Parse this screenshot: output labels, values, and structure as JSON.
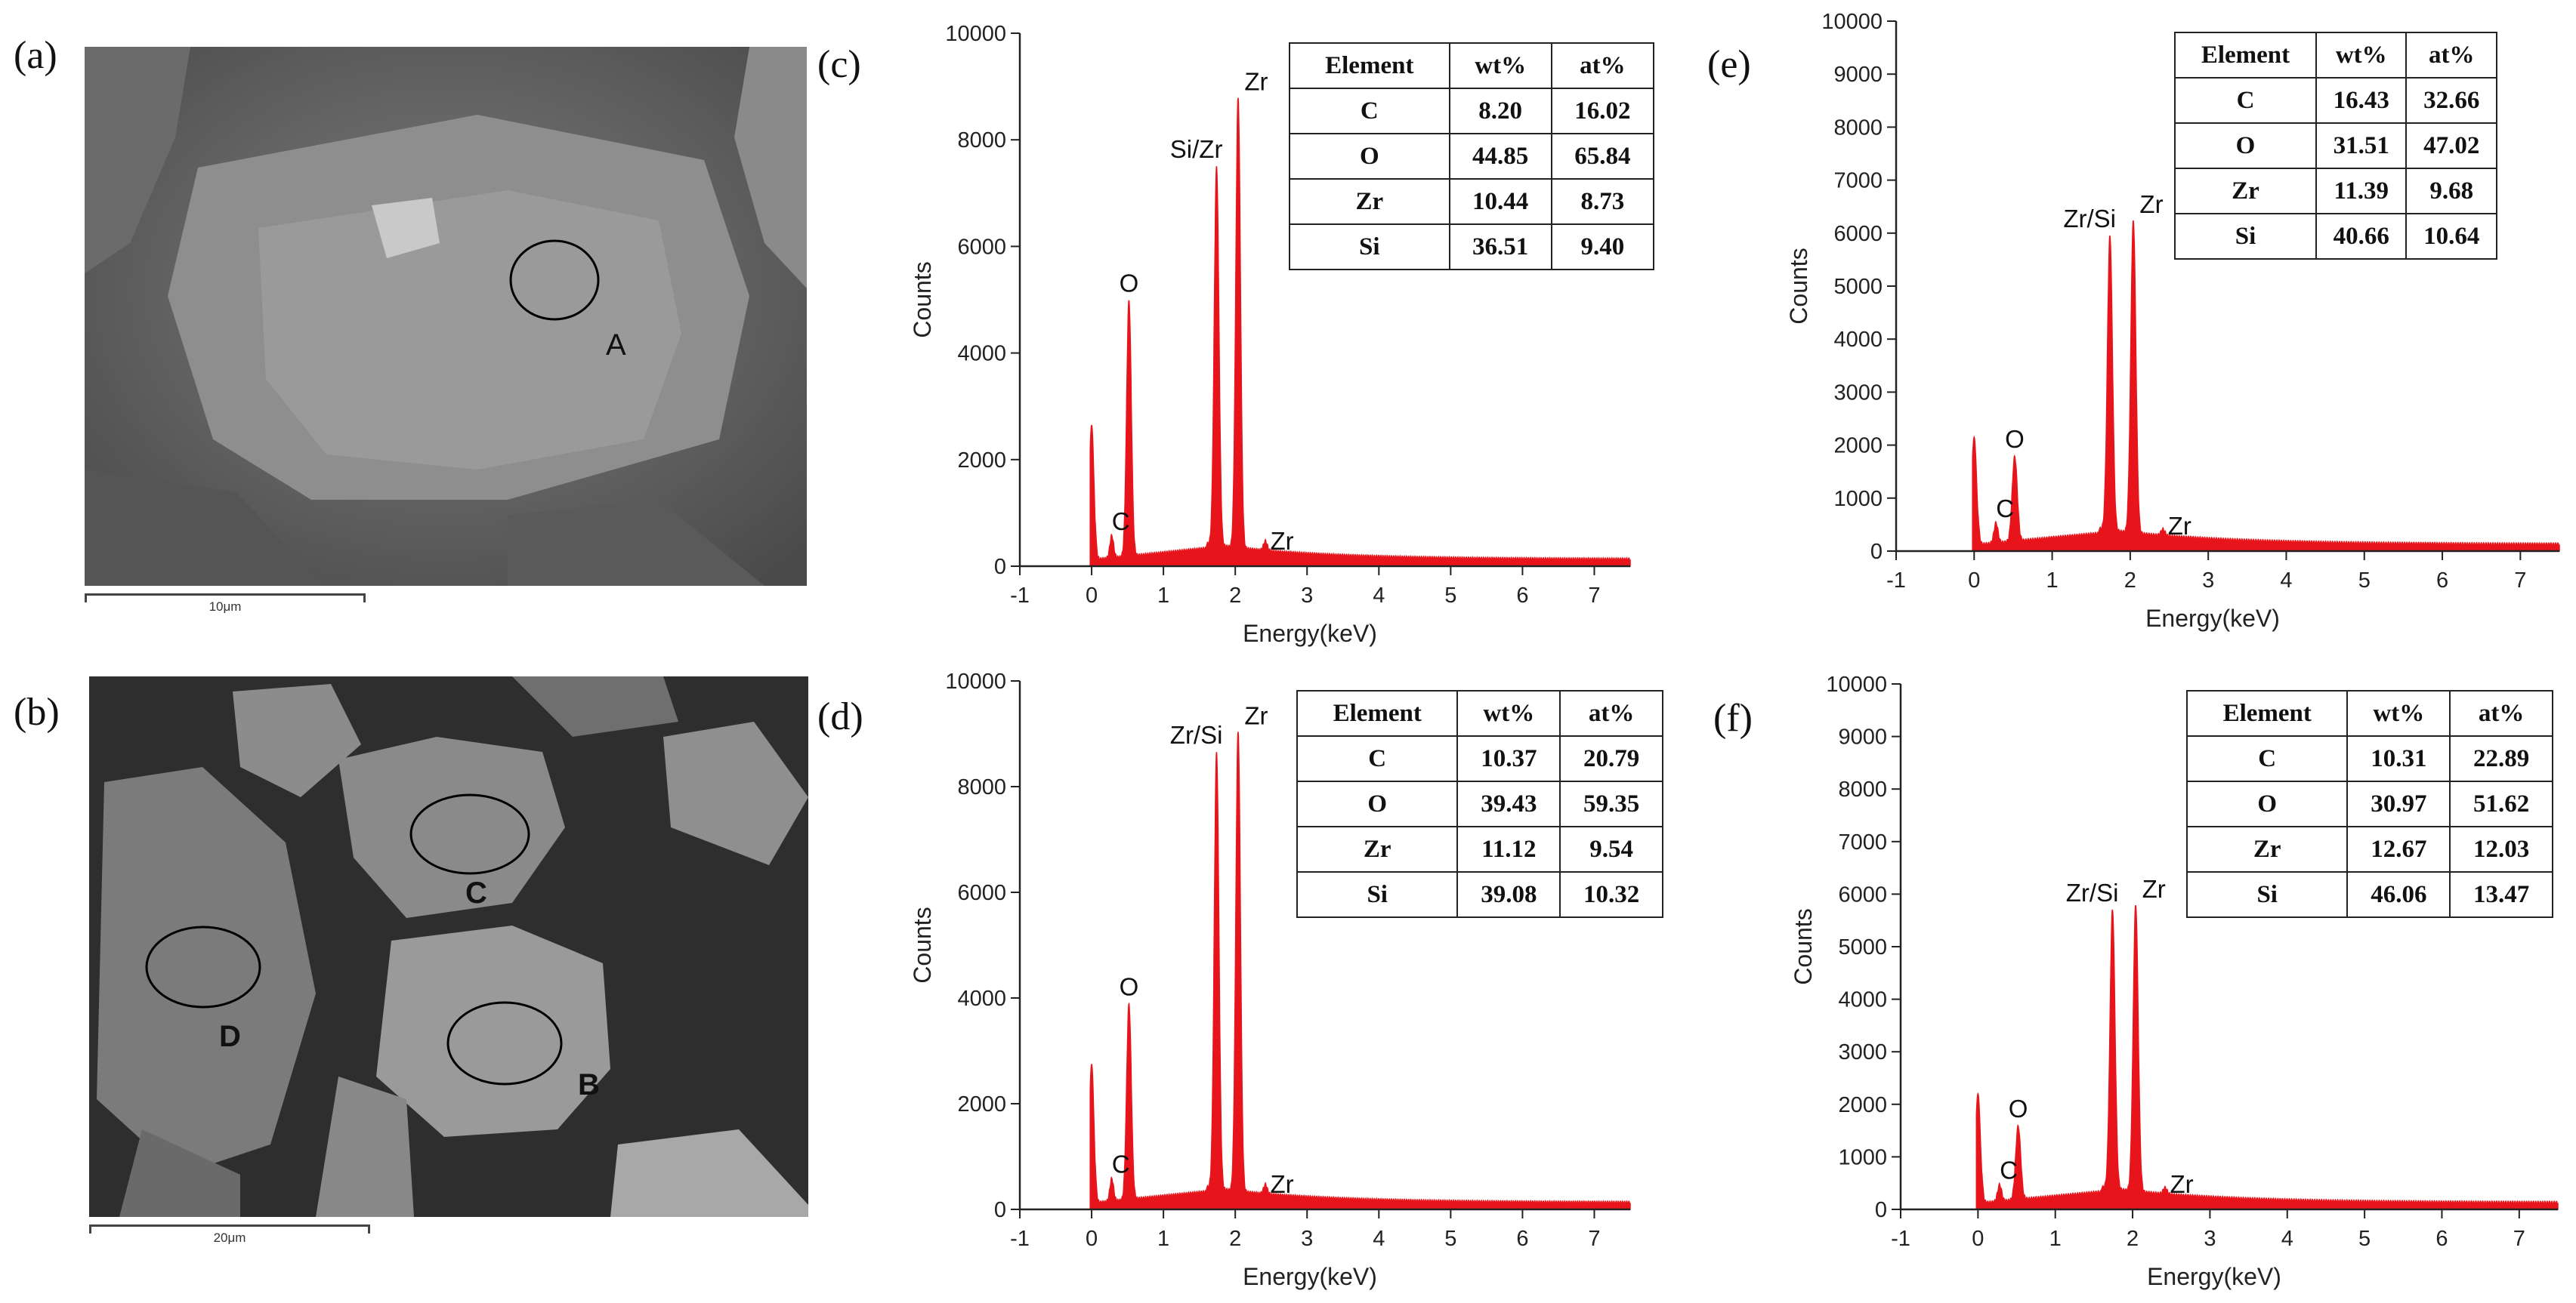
{
  "panels": {
    "a": {
      "letter": "(a)",
      "scalebar": "10μm",
      "regions": [
        "A"
      ]
    },
    "b": {
      "letter": "(b)",
      "scalebar": "20μm",
      "regions": [
        "C",
        "D",
        "B"
      ]
    },
    "c": {
      "letter": "(c)"
    },
    "d": {
      "letter": "(d)"
    },
    "e": {
      "letter": "(e)"
    },
    "f": {
      "letter": "(f)"
    }
  },
  "colors": {
    "spectrum": "#e8141b",
    "axis": "#222222"
  },
  "chart_data": [
    {
      "id": "c",
      "type": "area",
      "xlabel": "Energy(keV)",
      "ylabel": "Counts",
      "xlim": [
        -1,
        7.5
      ],
      "ylim": [
        0,
        10000
      ],
      "xticks": [
        -1,
        0,
        1,
        2,
        3,
        4,
        5,
        6,
        7
      ],
      "yticks": [
        0,
        2000,
        4000,
        6000,
        8000,
        10000
      ],
      "peaks": [
        {
          "x": 0.0,
          "y": 2650,
          "label": ""
        },
        {
          "x": 0.28,
          "y": 420,
          "label": "C"
        },
        {
          "x": 0.52,
          "y": 4800,
          "label": "O"
        },
        {
          "x": 1.74,
          "y": 7100,
          "label": "Si/Zr"
        },
        {
          "x": 2.04,
          "y": 8450,
          "label": "Zr"
        },
        {
          "x": 2.42,
          "y": 180,
          "label": "Zr"
        }
      ],
      "table": {
        "headers": [
          "Element",
          "wt%",
          "at%"
        ],
        "rows": [
          [
            "C",
            "8.20",
            "16.02"
          ],
          [
            "O",
            "44.85",
            "65.84"
          ],
          [
            "Zr",
            "10.44",
            "8.73"
          ],
          [
            "Si",
            "36.51",
            "9.40"
          ]
        ]
      }
    },
    {
      "id": "d",
      "type": "area",
      "xlabel": "Energy(keV)",
      "ylabel": "Counts",
      "xlim": [
        -1,
        7.5
      ],
      "ylim": [
        0,
        10000
      ],
      "xticks": [
        -1,
        0,
        1,
        2,
        3,
        4,
        5,
        6,
        7
      ],
      "yticks": [
        0,
        2000,
        4000,
        6000,
        8000,
        10000
      ],
      "peaks": [
        {
          "x": 0.0,
          "y": 2750,
          "label": ""
        },
        {
          "x": 0.28,
          "y": 430,
          "label": "C"
        },
        {
          "x": 0.52,
          "y": 3700,
          "label": "O"
        },
        {
          "x": 1.74,
          "y": 8250,
          "label": "Zr/Si"
        },
        {
          "x": 2.04,
          "y": 8700,
          "label": "Zr"
        },
        {
          "x": 2.42,
          "y": 180,
          "label": "Zr"
        }
      ],
      "table": {
        "headers": [
          "Element",
          "wt%",
          "at%"
        ],
        "rows": [
          [
            "C",
            "10.37",
            "20.79"
          ],
          [
            "O",
            "39.43",
            "59.35"
          ],
          [
            "Zr",
            "11.12",
            "9.54"
          ],
          [
            "Si",
            "39.08",
            "10.32"
          ]
        ]
      }
    },
    {
      "id": "e",
      "type": "area",
      "xlabel": "Energy(keV)",
      "ylabel": "Counts",
      "xlim": [
        -1,
        7.5
      ],
      "ylim": [
        0,
        10000
      ],
      "xticks": [
        -1,
        0,
        1,
        2,
        3,
        4,
        5,
        6,
        7
      ],
      "yticks": [
        0,
        1000,
        2000,
        3000,
        4000,
        5000,
        6000,
        7000,
        8000,
        9000,
        10000
      ],
      "peaks": [
        {
          "x": 0.0,
          "y": 2150,
          "label": ""
        },
        {
          "x": 0.28,
          "y": 380,
          "label": "C"
        },
        {
          "x": 0.52,
          "y": 1600,
          "label": "O"
        },
        {
          "x": 1.74,
          "y": 5550,
          "label": "Zr/Si"
        },
        {
          "x": 2.04,
          "y": 5900,
          "label": "Zr"
        },
        {
          "x": 2.42,
          "y": 120,
          "label": "Zr"
        }
      ],
      "table": {
        "headers": [
          "Element",
          "wt%",
          "at%"
        ],
        "rows": [
          [
            "C",
            "16.43",
            "32.66"
          ],
          [
            "O",
            "31.51",
            "47.02"
          ],
          [
            "Zr",
            "11.39",
            "9.68"
          ],
          [
            "Si",
            "40.66",
            "10.64"
          ]
        ]
      }
    },
    {
      "id": "f",
      "type": "area",
      "xlabel": "Energy(keV)",
      "ylabel": "Counts",
      "xlim": [
        -1,
        7.5
      ],
      "ylim": [
        0,
        10000
      ],
      "xticks": [
        -1,
        0,
        1,
        2,
        3,
        4,
        5,
        6,
        7
      ],
      "yticks": [
        0,
        1000,
        2000,
        3000,
        4000,
        5000,
        6000,
        7000,
        8000,
        9000,
        10000
      ],
      "peaks": [
        {
          "x": 0.0,
          "y": 2200,
          "label": ""
        },
        {
          "x": 0.28,
          "y": 320,
          "label": "C"
        },
        {
          "x": 0.52,
          "y": 1400,
          "label": "O"
        },
        {
          "x": 1.74,
          "y": 5300,
          "label": "Zr/Si"
        },
        {
          "x": 2.04,
          "y": 5450,
          "label": "Zr"
        },
        {
          "x": 2.42,
          "y": 120,
          "label": "Zr"
        }
      ],
      "table": {
        "headers": [
          "Element",
          "wt%",
          "at%"
        ],
        "rows": [
          [
            "C",
            "10.31",
            "22.89"
          ],
          [
            "O",
            "30.97",
            "51.62"
          ],
          [
            "Zr",
            "12.67",
            "12.03"
          ],
          [
            "Si",
            "46.06",
            "13.47"
          ]
        ]
      }
    }
  ]
}
